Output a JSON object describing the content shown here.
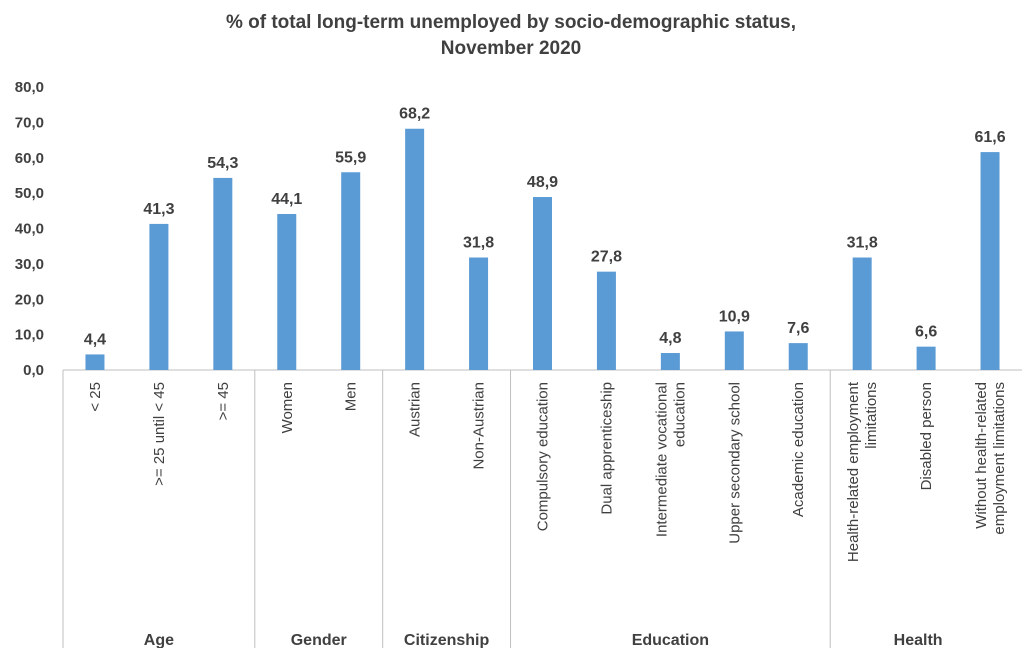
{
  "chart_data": {
    "type": "bar",
    "title": "% of total long-term unemployed by socio-demographic status,",
    "subtitle": "November 2020",
    "xlabel": "",
    "ylabel": "",
    "ylim": [
      0,
      80
    ],
    "yticks": [
      "0,0",
      "10,0",
      "20,0",
      "30,0",
      "40,0",
      "50,0",
      "60,0",
      "70,0",
      "80,0"
    ],
    "grid": false,
    "bar_color": "#5b9bd5",
    "categories": [
      "< 25",
      ">= 25 until < 45",
      ">= 45",
      "Women",
      "Men",
      "Austrian",
      "Non-Austrian",
      "Compulsory education",
      "Dual apprenticeship",
      "Intermediate vocational education",
      "Upper secondary school",
      "Academic education",
      "Health-related employment limitations",
      "Disabled person",
      "Without health-related employment limitations"
    ],
    "values": [
      4.4,
      41.3,
      54.3,
      44.1,
      55.9,
      68.2,
      31.8,
      48.9,
      27.8,
      4.8,
      10.9,
      7.6,
      31.8,
      6.6,
      61.6
    ],
    "data_labels": [
      "4,4",
      "41,3",
      "54,3",
      "44,1",
      "55,9",
      "68,2",
      "31,8",
      "48,9",
      "27,8",
      "4,8",
      "10,9",
      "7,6",
      "31,8",
      "6,6",
      "61,6"
    ],
    "groups": [
      {
        "name": "Age",
        "count": 3
      },
      {
        "name": "Gender",
        "count": 2
      },
      {
        "name": "Citizenship",
        "count": 2
      },
      {
        "name": "Education",
        "count": 5
      },
      {
        "name": "Health",
        "count": 3
      }
    ]
  }
}
